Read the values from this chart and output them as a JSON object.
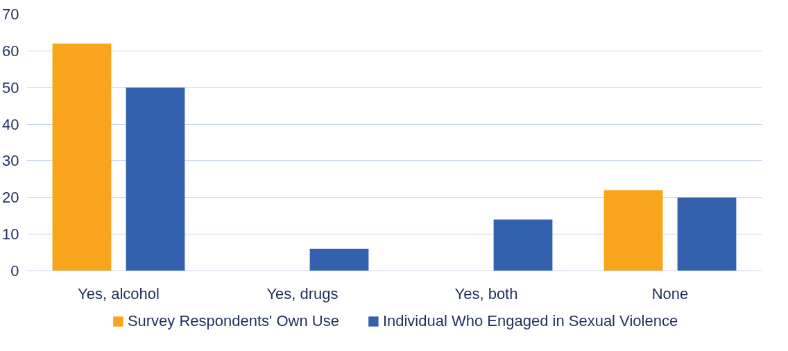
{
  "chart_data": {
    "type": "bar",
    "categories": [
      "Yes, alcohol",
      "Yes, drugs",
      "Yes, both",
      "None"
    ],
    "series": [
      {
        "name": "Survey Respondents' Own Use",
        "color": "#f9a51b",
        "values": [
          62,
          0,
          0,
          22
        ]
      },
      {
        "name": "Individual Who Engaged in Sexual Violence",
        "color": "#3461ae",
        "values": [
          50,
          6,
          14,
          20
        ]
      }
    ],
    "ylim": [
      0,
      70
    ],
    "yticks": [
      0,
      10,
      20,
      30,
      40,
      50,
      60,
      70
    ],
    "grid": "y",
    "legend": "bottom"
  }
}
